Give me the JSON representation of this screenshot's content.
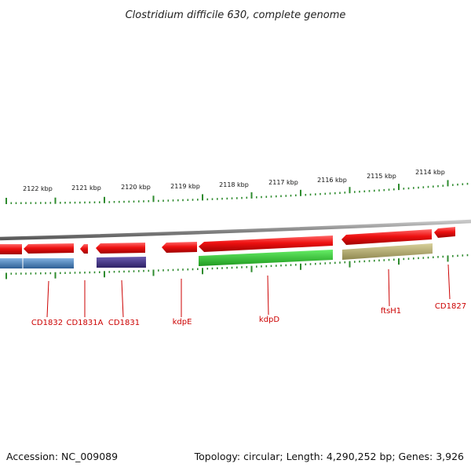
{
  "title": "Clostridium difficile 630, complete genome",
  "footer": {
    "accession": "Accession: NC_009089",
    "summary": "Topology: circular; Length: 4,290,252 bp; Genes: 3,926"
  },
  "scale_labels": [
    "2122 kbp",
    "2121 kbp",
    "2120 kbp",
    "2119 kbp",
    "2118 kbp",
    "2117 kbp",
    "2116 kbp",
    "2115 kbp",
    "2114 kbp"
  ],
  "gene_labels": [
    "CD1832",
    "CD1831A",
    "CD1831",
    "kdpE",
    "kdpD",
    "ftsH1",
    "CD1827"
  ],
  "colors": {
    "forward_gene": "#ee1111",
    "backbone": "#8a8a8a",
    "tick": "#2e8b2e",
    "label": "#cc0000",
    "orf_blue": "#4a7fb5",
    "orf_purple": "#4b3a8c",
    "orf_green": "#33cc33",
    "orf_khaki": "#b8b070"
  }
}
